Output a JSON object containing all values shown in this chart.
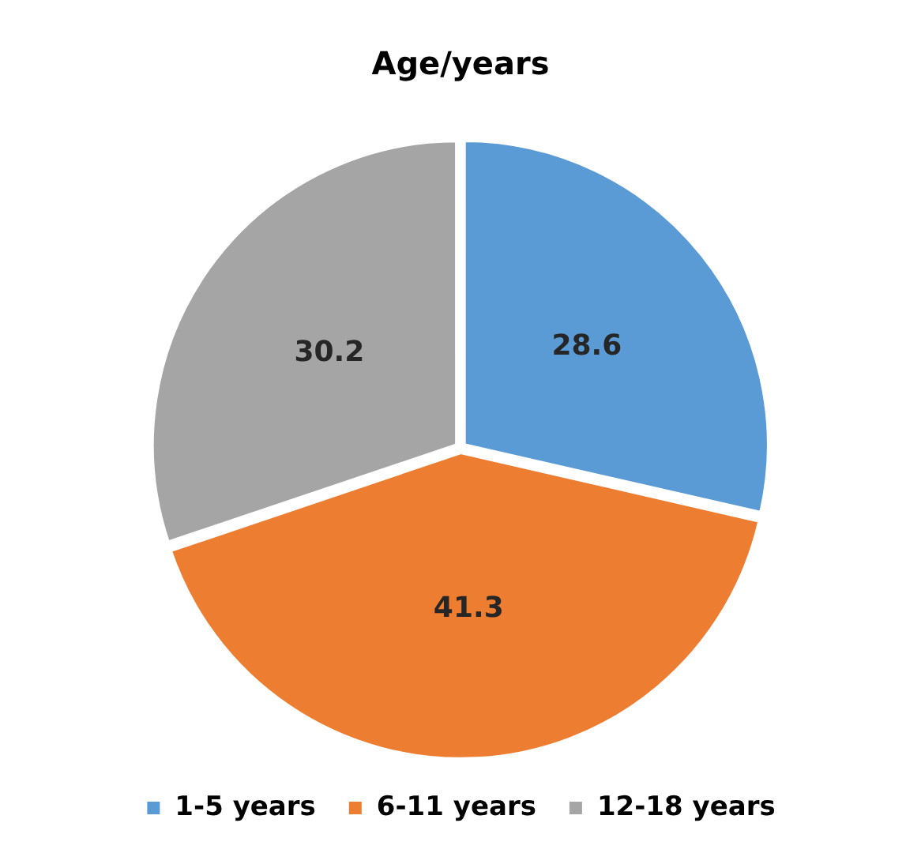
{
  "chart_data": {
    "type": "pie",
    "title": "Age/years",
    "categories": [
      "1-5 years",
      "6-11 years",
      "12-18 years"
    ],
    "values": [
      28.6,
      41.3,
      30.2
    ],
    "colors": [
      "#5b9bd5",
      "#ed7d31",
      "#a5a5a5"
    ],
    "data_labels": true,
    "legend": "bottom"
  }
}
